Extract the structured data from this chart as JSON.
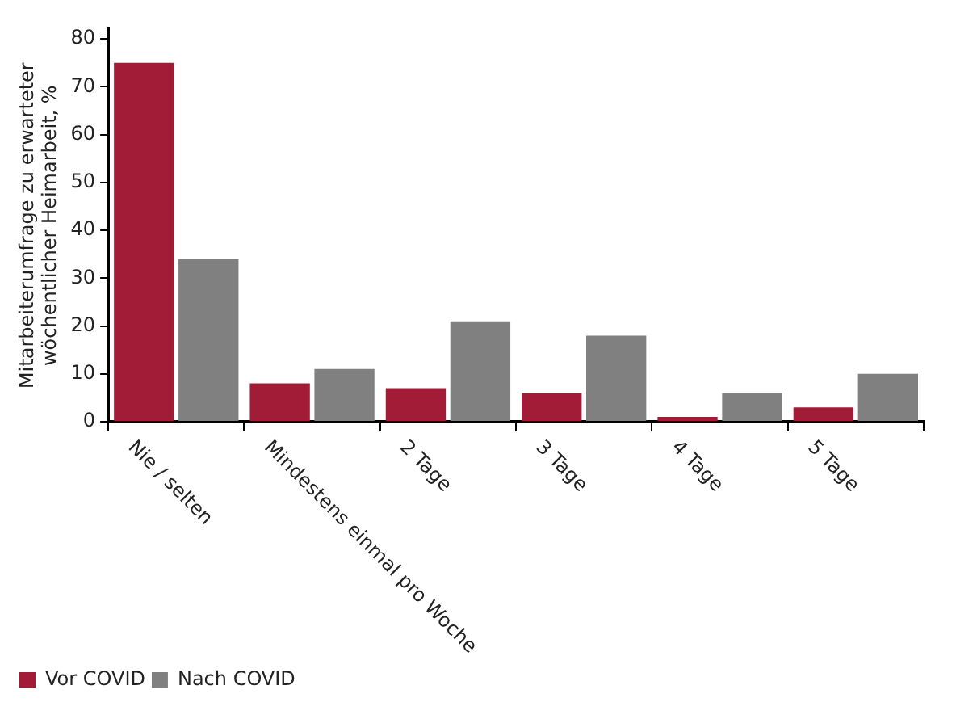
{
  "chart_data": {
    "type": "bar",
    "ylabel": "Mitarbeiterumfrage zu erwarteter\nwöchentlicher Heimarbeit, %",
    "categories": [
      "Nie / selten",
      "Mindestens einmal pro Woche",
      "2 Tage",
      "3 Tage",
      "4 Tage",
      "5 Tage"
    ],
    "series": [
      {
        "name": "Vor COVID",
        "color": "#a31c37",
        "values": [
          75,
          8,
          7,
          6,
          1,
          3
        ]
      },
      {
        "name": "Nach COVID",
        "color": "#808080",
        "values": [
          34,
          11,
          21,
          18,
          6,
          10
        ]
      }
    ],
    "ylim": [
      0,
      82
    ],
    "yticks": [
      0,
      10,
      20,
      30,
      40,
      50,
      60,
      70,
      80
    ],
    "grid": false,
    "legend": "bottom left"
  }
}
